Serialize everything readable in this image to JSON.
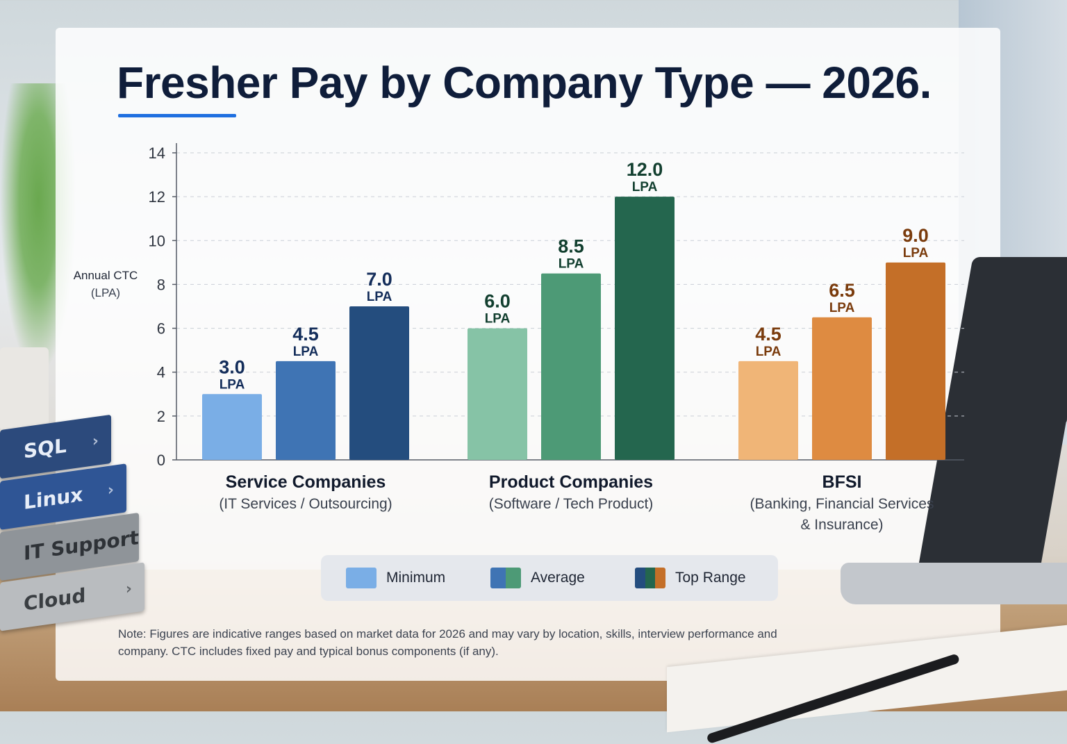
{
  "title": "Fresher Pay by Company Type — 2026.",
  "y_axis_label": {
    "line1": "Annual CTC",
    "line2": "(LPA)"
  },
  "note": "Note: Figures are indicative ranges based on market data for 2026 and may vary by location, skills, interview performance and company. CTC includes fixed pay and typical bonus components (if any).",
  "colors": {
    "accent": "#1f6fe0",
    "service": [
      "#7aaee6",
      "#3f74b4",
      "#244d7e"
    ],
    "product": [
      "#86c3a6",
      "#4d9a76",
      "#24664e"
    ],
    "bfsi": [
      "#f0b577",
      "#de8b41",
      "#c46f28"
    ],
    "label_service": "#132d5a",
    "label_product": "#123f2f",
    "label_bfsi": "#7a3b0c"
  },
  "legend": [
    {
      "label": "Minimum",
      "swatch": [
        "#7aaee6"
      ]
    },
    {
      "label": "Average",
      "swatch": [
        "#3f74b4",
        "#4d9a76"
      ]
    },
    {
      "label": "Top Range",
      "swatch": [
        "#244d7e",
        "#24664e",
        "#c46f28"
      ]
    }
  ],
  "background_book_labels": [
    "SQL",
    "Linux",
    "IT Support",
    "Cloud"
  ],
  "chart_data": {
    "type": "bar",
    "title": "Fresher Pay by Company Type — 2026.",
    "ylabel": "Annual CTC (LPA)",
    "xlabel": "",
    "ylim": [
      0,
      14
    ],
    "yticks": [
      0,
      2,
      4,
      6,
      8,
      10,
      12,
      14
    ],
    "grid": true,
    "legend_position": "bottom",
    "value_unit": "LPA",
    "categories": [
      {
        "name": "Service Companies",
        "subtitle": [
          "(IT Services / Outsourcing)"
        ]
      },
      {
        "name": "Product Companies",
        "subtitle": [
          "(Software / Tech Product)"
        ]
      },
      {
        "name": "BFSI",
        "subtitle": [
          "(Banking, Financial Services",
          "& Insurance)"
        ]
      }
    ],
    "series": [
      {
        "name": "Minimum",
        "values": [
          3.0,
          6.0,
          4.5
        ]
      },
      {
        "name": "Average",
        "values": [
          4.5,
          8.5,
          6.5
        ]
      },
      {
        "name": "Top Range",
        "values": [
          7.0,
          12.0,
          9.0
        ]
      }
    ]
  }
}
